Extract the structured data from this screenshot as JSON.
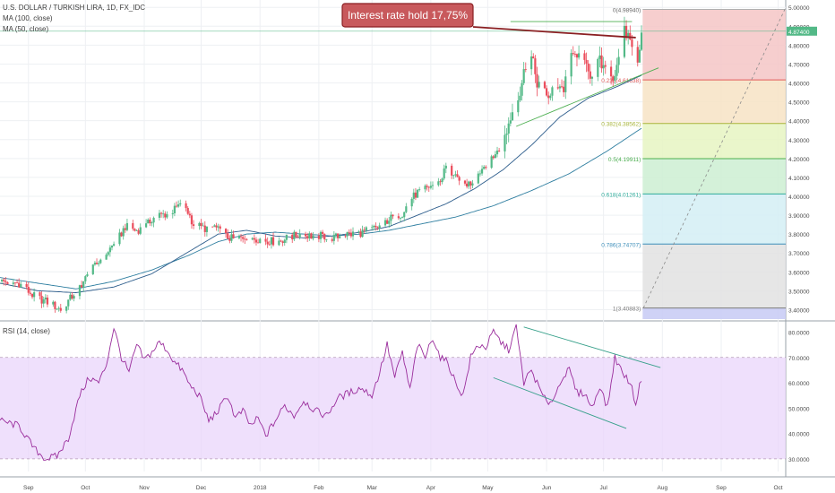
{
  "header": {
    "symbol": "U.S. DOLLAR / TURKISH LIRA, 1D, FX_IDC",
    "ma100": "MA (100, close)",
    "ma50": "MA (50, close)",
    "rsi": "RSI (14, close)"
  },
  "annotation": "Interest rate hold 17,75%",
  "colors": {
    "up": "#53b987",
    "down": "#eb4d5c",
    "ma100": "#2e7ea0",
    "ma50": "#2d5d8c",
    "rsi_line": "#9a2d9c",
    "rsi_band": "#e9d5fb",
    "callout_fill": "#c8595c",
    "callout_stroke": "#8a1f22",
    "trend_green": "#4caf50",
    "trend_teal": "#36a08a"
  },
  "price_axis": {
    "ticks": [
      "5.00000",
      "4.90000",
      "4.80000",
      "4.70000",
      "4.60000",
      "4.50000",
      "4.40000",
      "4.30000",
      "4.20000",
      "4.10000",
      "4.00000",
      "3.90000",
      "3.80000",
      "3.70000",
      "3.60000",
      "3.50000",
      "3.40000"
    ],
    "current_price_label": "4.87400"
  },
  "rsi_axis": {
    "ticks": [
      "80.0000",
      "70.0000",
      "60.0000",
      "50.0000",
      "40.0000",
      "30.0000"
    ]
  },
  "time_axis": {
    "labels": [
      "Sep",
      "Oct",
      "Nov",
      "Dec",
      "2018",
      "Feb",
      "Mar",
      "Apr",
      "May",
      "Jun",
      "Jul",
      "Aug",
      "Sep",
      "Oct"
    ]
  },
  "fib": {
    "labels": [
      "0(4.98940)",
      "0.236(4.61638)",
      "0.382(4.38562)",
      "0.5(4.19911)",
      "0.618(4.01261)",
      "0.786(3.74707)",
      "1(3.40883)"
    ]
  },
  "chart_data": {
    "type": "candlestick",
    "title": "U.S. DOLLAR / TURKISH LIRA, 1D, FX_IDC",
    "ylim": [
      3.35,
      5.02
    ],
    "rsi_ylim": [
      25,
      83
    ],
    "rsi_bands": [
      30,
      70
    ],
    "months": [
      {
        "label": "Sep",
        "day": 15
      },
      {
        "label": "Oct",
        "day": 45
      },
      {
        "label": "Nov",
        "day": 76
      },
      {
        "label": "Dec",
        "day": 106
      },
      {
        "label": "2018",
        "day": 137
      },
      {
        "label": "Feb",
        "day": 168
      },
      {
        "label": "Mar",
        "day": 196
      },
      {
        "label": "Apr",
        "day": 227
      },
      {
        "label": "May",
        "day": 257
      },
      {
        "label": "Jun",
        "day": 288
      },
      {
        "label": "Jul",
        "day": 318
      },
      {
        "label": "Aug",
        "day": 349
      },
      {
        "label": "Sep",
        "day": 380
      },
      {
        "label": "Oct",
        "day": 410
      }
    ],
    "last_data_day": 338,
    "close_keypoints": [
      [
        0,
        3.55
      ],
      [
        10,
        3.54
      ],
      [
        18,
        3.47
      ],
      [
        25,
        3.44
      ],
      [
        32,
        3.4
      ],
      [
        38,
        3.47
      ],
      [
        44,
        3.55
      ],
      [
        50,
        3.63
      ],
      [
        56,
        3.7
      ],
      [
        62,
        3.77
      ],
      [
        66,
        3.84
      ],
      [
        71,
        3.82
      ],
      [
        76,
        3.83
      ],
      [
        80,
        3.88
      ],
      [
        84,
        3.9
      ],
      [
        90,
        3.91
      ],
      [
        94,
        3.95
      ],
      [
        98,
        3.94
      ],
      [
        102,
        3.85
      ],
      [
        108,
        3.83
      ],
      [
        113,
        3.84
      ],
      [
        118,
        3.79
      ],
      [
        124,
        3.77
      ],
      [
        130,
        3.79
      ],
      [
        138,
        3.77
      ],
      [
        145,
        3.76
      ],
      [
        152,
        3.78
      ],
      [
        158,
        3.8
      ],
      [
        164,
        3.79
      ],
      [
        170,
        3.79
      ],
      [
        176,
        3.78
      ],
      [
        182,
        3.8
      ],
      [
        188,
        3.8
      ],
      [
        194,
        3.82
      ],
      [
        200,
        3.84
      ],
      [
        205,
        3.88
      ],
      [
        212,
        3.91
      ],
      [
        216,
        3.98
      ],
      [
        220,
        4.02
      ],
      [
        226,
        4.05
      ],
      [
        232,
        4.08
      ],
      [
        235,
        4.16
      ],
      [
        238,
        4.12
      ],
      [
        243,
        4.06
      ],
      [
        248,
        4.07
      ],
      [
        252,
        4.12
      ],
      [
        258,
        4.2
      ],
      [
        264,
        4.25
      ],
      [
        267,
        4.35
      ],
      [
        270,
        4.45
      ],
      [
        274,
        4.55
      ],
      [
        277,
        4.7
      ],
      [
        280,
        4.73
      ],
      [
        283,
        4.61
      ],
      [
        286,
        4.58
      ],
      [
        290,
        4.52
      ],
      [
        293,
        4.6
      ],
      [
        297,
        4.57
      ],
      [
        300,
        4.71
      ],
      [
        303,
        4.75
      ],
      [
        306,
        4.72
      ],
      [
        310,
        4.65
      ],
      [
        313,
        4.66
      ],
      [
        316,
        4.71
      ],
      [
        320,
        4.63
      ],
      [
        324,
        4.65
      ],
      [
        328,
        4.87
      ],
      [
        331,
        4.85
      ],
      [
        334,
        4.8
      ],
      [
        336,
        4.74
      ],
      [
        338,
        4.87
      ]
    ],
    "ma100_keypoints": [
      [
        0,
        3.57
      ],
      [
        20,
        3.54
      ],
      [
        40,
        3.51
      ],
      [
        60,
        3.55
      ],
      [
        80,
        3.61
      ],
      [
        100,
        3.69
      ],
      [
        115,
        3.76
      ],
      [
        130,
        3.8
      ],
      [
        145,
        3.81
      ],
      [
        160,
        3.8
      ],
      [
        175,
        3.79
      ],
      [
        190,
        3.8
      ],
      [
        205,
        3.82
      ],
      [
        220,
        3.85
      ],
      [
        240,
        3.89
      ],
      [
        260,
        3.95
      ],
      [
        280,
        4.03
      ],
      [
        300,
        4.12
      ],
      [
        320,
        4.24
      ],
      [
        338,
        4.36
      ]
    ],
    "ma50_keypoints": [
      [
        0,
        3.54
      ],
      [
        20,
        3.5
      ],
      [
        40,
        3.49
      ],
      [
        60,
        3.52
      ],
      [
        80,
        3.59
      ],
      [
        100,
        3.71
      ],
      [
        115,
        3.8
      ],
      [
        130,
        3.82
      ],
      [
        145,
        3.79
      ],
      [
        160,
        3.78
      ],
      [
        175,
        3.79
      ],
      [
        190,
        3.81
      ],
      [
        205,
        3.84
      ],
      [
        220,
        3.9
      ],
      [
        235,
        3.96
      ],
      [
        250,
        4.04
      ],
      [
        265,
        4.14
      ],
      [
        280,
        4.27
      ],
      [
        295,
        4.42
      ],
      [
        310,
        4.52
      ],
      [
        325,
        4.58
      ],
      [
        338,
        4.64
      ]
    ],
    "rsi_keypoints": [
      [
        0,
        45
      ],
      [
        10,
        43
      ],
      [
        18,
        34
      ],
      [
        24,
        30
      ],
      [
        30,
        31
      ],
      [
        36,
        38
      ],
      [
        42,
        55
      ],
      [
        47,
        62
      ],
      [
        52,
        60
      ],
      [
        56,
        67
      ],
      [
        60,
        82
      ],
      [
        64,
        70
      ],
      [
        68,
        64
      ],
      [
        72,
        75
      ],
      [
        76,
        69
      ],
      [
        80,
        72
      ],
      [
        84,
        76
      ],
      [
        88,
        73
      ],
      [
        92,
        68
      ],
      [
        96,
        65
      ],
      [
        100,
        59
      ],
      [
        105,
        55
      ],
      [
        110,
        45
      ],
      [
        115,
        49
      ],
      [
        120,
        55
      ],
      [
        124,
        46
      ],
      [
        128,
        49
      ],
      [
        132,
        43
      ],
      [
        136,
        46
      ],
      [
        140,
        39
      ],
      [
        145,
        45
      ],
      [
        150,
        51
      ],
      [
        155,
        47
      ],
      [
        160,
        53
      ],
      [
        166,
        49
      ],
      [
        172,
        47
      ],
      [
        178,
        54
      ],
      [
        184,
        56
      ],
      [
        190,
        58
      ],
      [
        196,
        55
      ],
      [
        200,
        64
      ],
      [
        204,
        75
      ],
      [
        208,
        62
      ],
      [
        212,
        72
      ],
      [
        216,
        57
      ],
      [
        220,
        75
      ],
      [
        224,
        70
      ],
      [
        228,
        78
      ],
      [
        232,
        70
      ],
      [
        236,
        68
      ],
      [
        240,
        60
      ],
      [
        244,
        55
      ],
      [
        248,
        70
      ],
      [
        252,
        75
      ],
      [
        256,
        74
      ],
      [
        260,
        80
      ],
      [
        264,
        76
      ],
      [
        268,
        73
      ],
      [
        272,
        82
      ],
      [
        276,
        60
      ],
      [
        280,
        65
      ],
      [
        284,
        58
      ],
      [
        288,
        52
      ],
      [
        292,
        54
      ],
      [
        296,
        62
      ],
      [
        300,
        65
      ],
      [
        304,
        56
      ],
      [
        308,
        56
      ],
      [
        312,
        50
      ],
      [
        316,
        59
      ],
      [
        320,
        50
      ],
      [
        324,
        70
      ],
      [
        328,
        64
      ],
      [
        332,
        60
      ],
      [
        335,
        52
      ],
      [
        338,
        62
      ]
    ],
    "fibonacci": {
      "price_top": 4.9894,
      "price_bottom": 3.40883,
      "levels": [
        {
          "ratio": "0",
          "price": 4.9894,
          "color": "#b0b0b0",
          "fill": "#f4c6c6"
        },
        {
          "ratio": "0.236",
          "price": 4.61638,
          "color": "#e05a5a",
          "fill": "#f7e3c4"
        },
        {
          "ratio": "0.382",
          "price": 4.38562,
          "color": "#a7b43a",
          "fill": "#e6f5c2"
        },
        {
          "ratio": "0.5",
          "price": 4.19911,
          "color": "#4caf50",
          "fill": "#cdeed2"
        },
        {
          "ratio": "0.618",
          "price": 4.01261,
          "color": "#2eab9a",
          "fill": "#d4eff4"
        },
        {
          "ratio": "0.786",
          "price": 3.74707,
          "color": "#3d8eb9",
          "fill": "#e2e2e2"
        },
        {
          "ratio": "1",
          "price": 3.40883,
          "color": "#7a7a7a",
          "fill": "#c7caf5"
        }
      ]
    }
  }
}
